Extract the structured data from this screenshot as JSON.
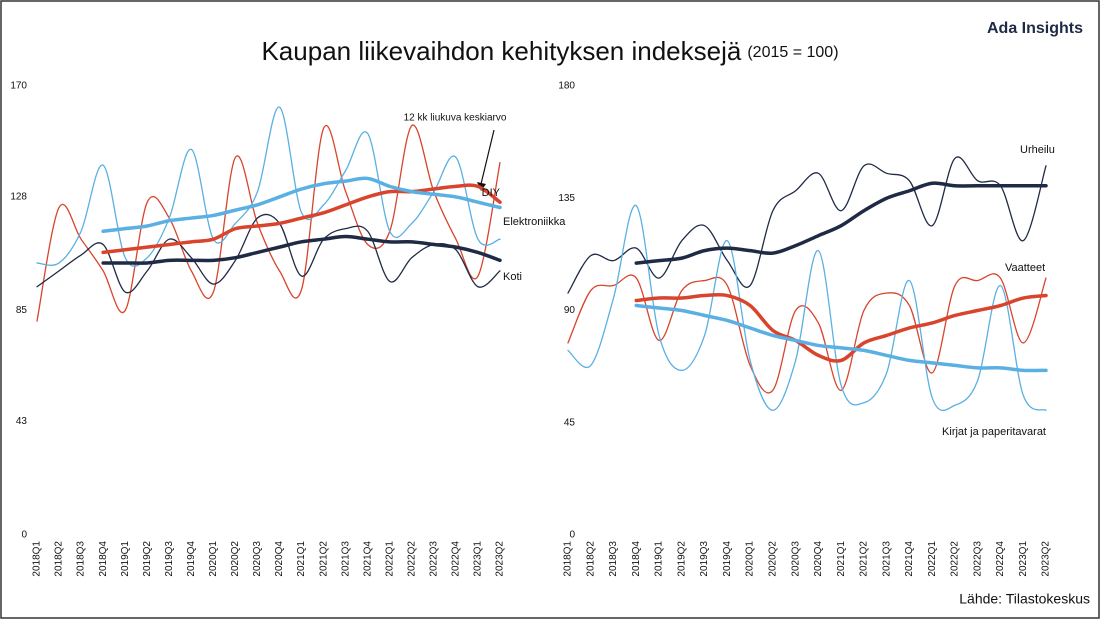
{
  "header": {
    "brand": "Ada Insights",
    "title": "Kaupan liikevaihdon kehityksen indeksejä",
    "subtitle": "(2015 = 100)"
  },
  "source": "Lähde: Tilastokeskus",
  "chart_data": [
    {
      "type": "line",
      "annotation": "12 kk liukuva keskiarvo",
      "categories": [
        "2018Q1",
        "2018Q2",
        "2018Q3",
        "2018Q4",
        "2019Q1",
        "2019Q2",
        "2019Q3",
        "2019Q4",
        "2020Q1",
        "2020Q2",
        "2020Q3",
        "2020Q4",
        "2021Q1",
        "2021Q2",
        "2021Q3",
        "2021Q4",
        "2022Q1",
        "2022Q2",
        "2022Q3",
        "2022Q4",
        "2023Q1",
        "2023Q2"
      ],
      "ylim": [
        0,
        170
      ],
      "yticks": [
        0,
        43,
        85,
        128,
        170
      ],
      "grid": false,
      "series": [
        {
          "name": "DIY",
          "color": "#d8442c",
          "values": [
            81,
            124,
            112,
            100,
            85,
            126,
            120,
            100,
            92,
            143,
            118,
            100,
            93,
            154,
            130,
            110,
            115,
            155,
            130,
            112,
            98,
            141
          ],
          "average": [
            null,
            null,
            null,
            107,
            108,
            109,
            110,
            111,
            112,
            116,
            117,
            118,
            120,
            122,
            125,
            128,
            130,
            130,
            131,
            132,
            132,
            126
          ]
        },
        {
          "name": "Elektroniikka",
          "color": "#5ab0e2",
          "values": [
            103,
            103,
            115,
            140,
            105,
            105,
            120,
            146,
            112,
            118,
            130,
            162,
            122,
            125,
            138,
            152,
            115,
            118,
            130,
            143,
            112,
            112
          ],
          "average": [
            null,
            null,
            null,
            115,
            116,
            117,
            119,
            120,
            121,
            123,
            125,
            128,
            131,
            133,
            134,
            135,
            132,
            130,
            129,
            128,
            126,
            124
          ]
        },
        {
          "name": "Koti",
          "color": "#1f2a44",
          "values": [
            94,
            100,
            106,
            110,
            92,
            100,
            112,
            105,
            95,
            104,
            120,
            118,
            98,
            112,
            116,
            115,
            96,
            105,
            110,
            108,
            94,
            100
          ],
          "average": [
            null,
            null,
            null,
            103,
            103,
            103,
            104,
            104,
            104,
            105,
            107,
            109,
            111,
            112,
            113,
            112,
            111,
            111,
            110,
            109,
            107,
            104
          ]
        }
      ]
    },
    {
      "type": "line",
      "categories": [
        "2018Q1",
        "2018Q2",
        "2018Q3",
        "2018Q4",
        "2019Q1",
        "2019Q2",
        "2019Q3",
        "2019Q4",
        "2020Q1",
        "2020Q2",
        "2020Q3",
        "2020Q4",
        "2021Q1",
        "2021Q2",
        "2021Q3",
        "2021Q4",
        "2022Q1",
        "2022Q2",
        "2022Q3",
        "2022Q4",
        "2023Q1",
        "2023Q2"
      ],
      "ylim": [
        0,
        180
      ],
      "yticks": [
        0,
        45,
        90,
        135,
        180
      ],
      "grid": false,
      "series": [
        {
          "name": "Urheilu",
          "color": "#1f2a44",
          "values": [
            97,
            112,
            110,
            115,
            103,
            118,
            124,
            110,
            100,
            130,
            138,
            145,
            130,
            148,
            145,
            142,
            124,
            151,
            142,
            140,
            118,
            148
          ],
          "average": [
            null,
            null,
            null,
            109,
            110,
            111,
            114,
            115,
            114,
            113,
            116,
            120,
            124,
            130,
            135,
            138,
            141,
            140,
            140,
            140,
            140,
            140
          ]
        },
        {
          "name": "Vaatteet",
          "color": "#d8442c",
          "values": [
            77,
            98,
            100,
            103,
            78,
            98,
            102,
            100,
            68,
            58,
            90,
            85,
            58,
            90,
            97,
            92,
            65,
            100,
            102,
            103,
            77,
            103
          ],
          "average": [
            null,
            null,
            null,
            94,
            95,
            95,
            96,
            96,
            92,
            82,
            78,
            72,
            70,
            77,
            80,
            83,
            85,
            88,
            90,
            92,
            95,
            96
          ]
        },
        {
          "name": "Kirjat ja paperitavarat",
          "color": "#5ab0e2",
          "values": [
            74,
            68,
            95,
            132,
            80,
            66,
            80,
            118,
            70,
            50,
            70,
            114,
            60,
            53,
            65,
            102,
            55,
            52,
            62,
            100,
            56,
            50
          ],
          "average": [
            null,
            null,
            null,
            92,
            91,
            90,
            88,
            86,
            83,
            80,
            78,
            76,
            75,
            74,
            72,
            70,
            69,
            68,
            67,
            67,
            66,
            66
          ]
        }
      ]
    }
  ]
}
